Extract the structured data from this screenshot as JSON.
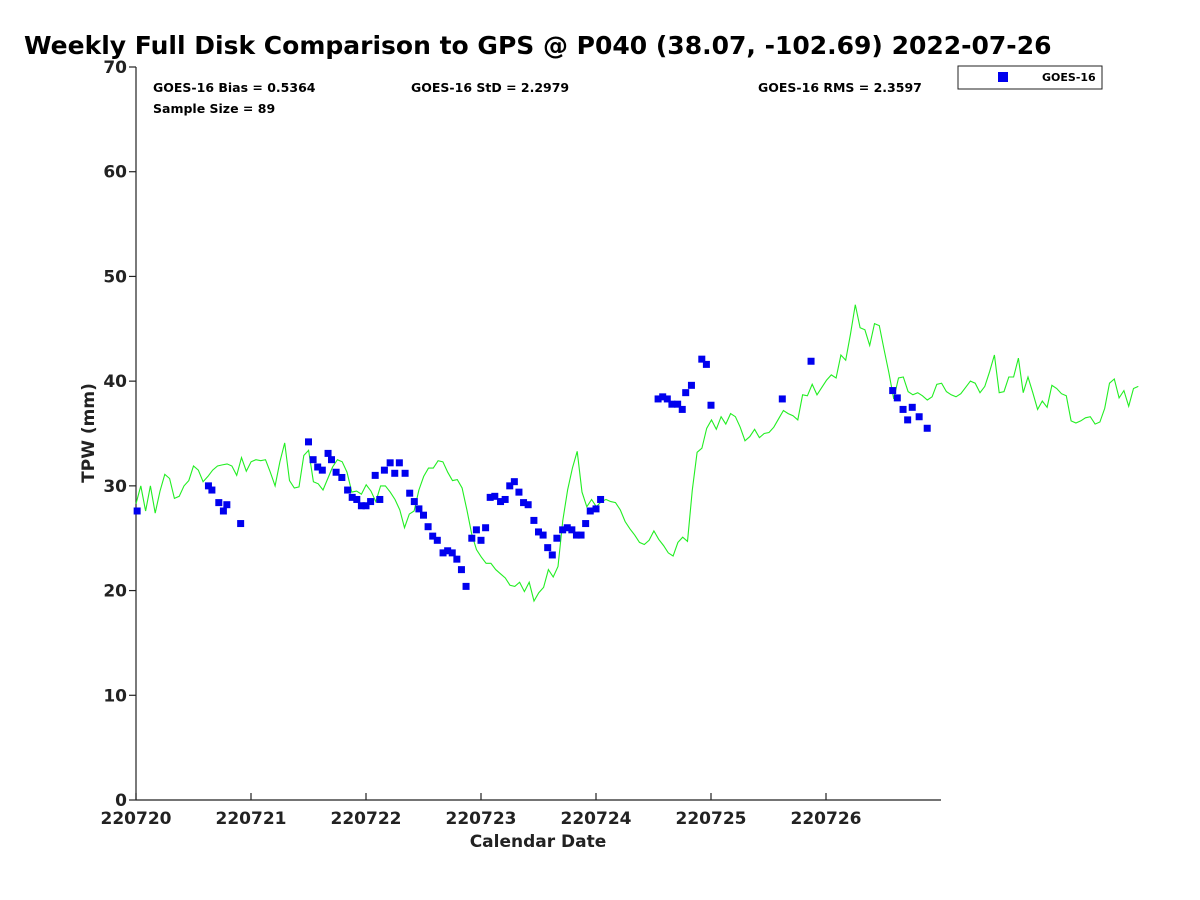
{
  "colors": {
    "goes": "#0000ee",
    "gps": "#22ee22",
    "axis": "#222222"
  },
  "chart_data": {
    "type": "scatter",
    "title": "Weekly Full Disk Comparison to GPS @ P040 (38.07, -102.69) 2022-07-26",
    "xlabel": "Calendar Date",
    "ylabel": "TPW (mm)",
    "xlim": [
      0,
      7
    ],
    "ylim": [
      0,
      70
    ],
    "x_tick_labels": [
      "220720",
      "220721",
      "220722",
      "220723",
      "220724",
      "220725",
      "220726"
    ],
    "y_ticks": [
      0,
      10,
      20,
      30,
      40,
      50,
      60,
      70
    ],
    "grid": false,
    "legend_position": "top-right",
    "stats": {
      "bias": "GOES-16 Bias = 0.5364",
      "std": "GOES-16 StD = 2.2979",
      "rms": "GOES-16 RMS = 2.3597",
      "sample": "Sample Size = 89"
    },
    "series": [
      {
        "name": "GOES-16",
        "kind": "scatter",
        "points": [
          [
            0.01,
            27.6
          ],
          [
            0.63,
            30.0
          ],
          [
            0.66,
            29.6
          ],
          [
            0.72,
            28.4
          ],
          [
            0.76,
            27.6
          ],
          [
            0.79,
            28.2
          ],
          [
            0.91,
            26.4
          ],
          [
            1.5,
            34.2
          ],
          [
            1.54,
            32.5
          ],
          [
            1.58,
            31.8
          ],
          [
            1.62,
            31.5
          ],
          [
            1.67,
            33.1
          ],
          [
            1.7,
            32.5
          ],
          [
            1.74,
            31.3
          ],
          [
            1.79,
            30.8
          ],
          [
            1.84,
            29.6
          ],
          [
            1.88,
            28.9
          ],
          [
            1.92,
            28.7
          ],
          [
            1.96,
            28.1
          ],
          [
            2.0,
            28.1
          ],
          [
            2.04,
            28.5
          ],
          [
            2.08,
            31.0
          ],
          [
            2.12,
            28.7
          ],
          [
            2.16,
            31.5
          ],
          [
            2.21,
            32.2
          ],
          [
            2.25,
            31.2
          ],
          [
            2.29,
            32.2
          ],
          [
            2.34,
            31.2
          ],
          [
            2.38,
            29.3
          ],
          [
            2.42,
            28.5
          ],
          [
            2.46,
            27.8
          ],
          [
            2.5,
            27.2
          ],
          [
            2.54,
            26.1
          ],
          [
            2.58,
            25.2
          ],
          [
            2.62,
            24.8
          ],
          [
            2.67,
            23.6
          ],
          [
            2.71,
            23.8
          ],
          [
            2.75,
            23.6
          ],
          [
            2.79,
            23.0
          ],
          [
            2.83,
            22.0
          ],
          [
            2.87,
            20.4
          ],
          [
            2.92,
            25.0
          ],
          [
            2.96,
            25.8
          ],
          [
            3.0,
            24.8
          ],
          [
            3.04,
            26.0
          ],
          [
            3.08,
            28.9
          ],
          [
            3.12,
            29.0
          ],
          [
            3.17,
            28.5
          ],
          [
            3.21,
            28.7
          ],
          [
            3.25,
            30.0
          ],
          [
            3.29,
            30.4
          ],
          [
            3.33,
            29.4
          ],
          [
            3.37,
            28.4
          ],
          [
            3.41,
            28.2
          ],
          [
            3.46,
            26.7
          ],
          [
            3.5,
            25.6
          ],
          [
            3.54,
            25.3
          ],
          [
            3.58,
            24.1
          ],
          [
            3.62,
            23.4
          ],
          [
            3.66,
            25.0
          ],
          [
            3.71,
            25.8
          ],
          [
            3.75,
            26.0
          ],
          [
            3.79,
            25.8
          ],
          [
            3.83,
            25.3
          ],
          [
            3.87,
            25.3
          ],
          [
            3.91,
            26.4
          ],
          [
            3.95,
            27.6
          ],
          [
            4.0,
            27.8
          ],
          [
            4.04,
            28.7
          ],
          [
            4.54,
            38.3
          ],
          [
            4.58,
            38.5
          ],
          [
            4.62,
            38.3
          ],
          [
            4.66,
            37.8
          ],
          [
            4.71,
            37.8
          ],
          [
            4.75,
            37.3
          ],
          [
            4.78,
            38.9
          ],
          [
            4.83,
            39.6
          ],
          [
            4.92,
            42.1
          ],
          [
            4.96,
            41.6
          ],
          [
            5.0,
            37.7
          ],
          [
            5.62,
            38.3
          ],
          [
            5.87,
            41.9
          ],
          [
            6.58,
            39.1
          ],
          [
            6.62,
            38.4
          ],
          [
            6.67,
            37.3
          ],
          [
            6.71,
            36.3
          ],
          [
            6.75,
            37.5
          ],
          [
            6.81,
            36.6
          ],
          [
            6.88,
            35.5
          ]
        ]
      },
      {
        "kind": "line",
        "x_start": 0,
        "x_step": 0.0417,
        "values": [
          28.3,
          30.0,
          27.6,
          30.0,
          27.4,
          29.5,
          31.1,
          30.7,
          28.8,
          29.0,
          30.0,
          30.5,
          31.9,
          31.5,
          30.4,
          30.9,
          31.5,
          31.9,
          32.0,
          32.1,
          31.9,
          31.0,
          32.7,
          31.4,
          32.3,
          32.5,
          32.4,
          32.5,
          31.3,
          30.0,
          32.3,
          34.1,
          30.5,
          29.8,
          29.9,
          32.9,
          33.4,
          30.4,
          30.2,
          29.6,
          30.7,
          31.8,
          32.5,
          32.3,
          31.3,
          29.4,
          29.5,
          29.2,
          30.1,
          29.5,
          28.5,
          30.0,
          30.0,
          29.4,
          28.7,
          27.7,
          26.0,
          27.3,
          27.6,
          29.6,
          30.9,
          31.7,
          31.7,
          32.4,
          32.3,
          31.3,
          30.5,
          30.6,
          29.8,
          27.7,
          25.4,
          23.9,
          23.2,
          22.6,
          22.6,
          22.0,
          21.6,
          21.2,
          20.5,
          20.4,
          20.8,
          19.9,
          20.8,
          19.0,
          19.8,
          20.3,
          22.0,
          21.3,
          22.3,
          26.7,
          29.6,
          31.7,
          33.3,
          29.4,
          28.0,
          28.7,
          28.0,
          28.5,
          28.7,
          28.5,
          28.4,
          27.7,
          26.6,
          25.9,
          25.3,
          24.6,
          24.4,
          24.8,
          25.7,
          24.9,
          24.3,
          23.6,
          23.3,
          24.6,
          25.1,
          24.7,
          29.6,
          33.2,
          33.6,
          35.5,
          36.3,
          35.4,
          36.6,
          35.9,
          36.9,
          36.6,
          35.6,
          34.3,
          34.7,
          35.4,
          34.6,
          35.0,
          35.1,
          35.6,
          36.4,
          37.2,
          36.9,
          36.7,
          36.3,
          38.7,
          38.6,
          39.7,
          38.7,
          39.4,
          40.1,
          40.6,
          40.3,
          42.5,
          42.0,
          44.5,
          47.3,
          45.1,
          44.9,
          43.4,
          45.5,
          45.3,
          43.0,
          40.8,
          38.3,
          40.3,
          40.4,
          39.0,
          38.7,
          38.9,
          38.6,
          38.2,
          38.5,
          39.7,
          39.8,
          39.0,
          38.7,
          38.5,
          38.8,
          39.4,
          40.0,
          39.8,
          38.9,
          39.5,
          40.9,
          42.5,
          38.9,
          39.0,
          40.4,
          40.4,
          42.2,
          38.9,
          40.4,
          38.9,
          37.3,
          38.1,
          37.5,
          39.6,
          39.3,
          38.8,
          38.6,
          36.2,
          36.0,
          36.2,
          36.5,
          36.6,
          35.9,
          36.1,
          37.4,
          39.8,
          40.2,
          38.4,
          39.1,
          37.6,
          39.3,
          39.5
        ]
      }
    ]
  }
}
